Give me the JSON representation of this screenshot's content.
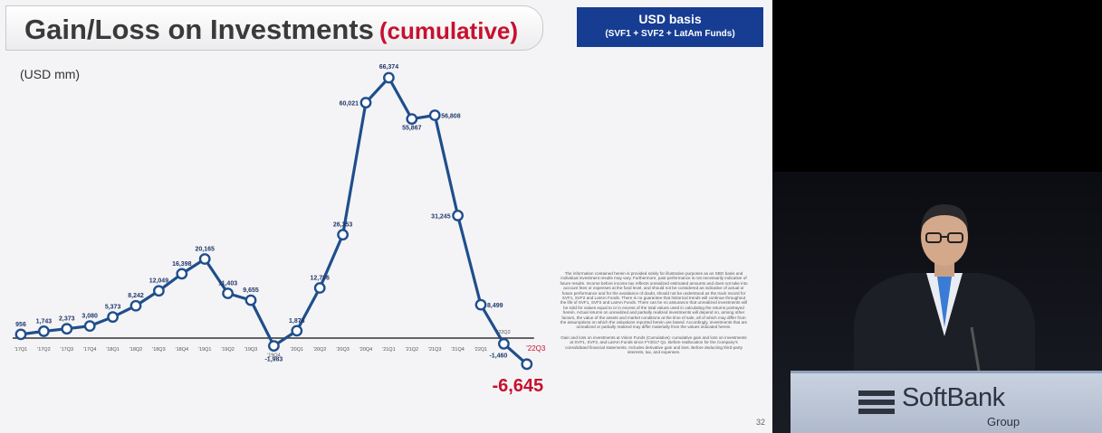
{
  "slide": {
    "title": "Gain/Loss on Investments",
    "title_highlight": "(cumulative)",
    "basis_title": "USD basis",
    "basis_detail": "(SVF1 + SVF2 + LatAm Funds)",
    "unit": "(USD mm)",
    "page_number": "32",
    "disclaimer": "The information contained herein is provided solely for illustrative purposes as an SBG basis and individual investment results may vary. Furthermore, past performance is not necessarily indicative of future results. Income before income tax reflects unrealized estimated amounts and does not take into account fees or expenses at the fund level, and should not be considered as indicative of actual or future performance and for the avoidance of doubt, should not be understood as the track record for SVF1, SVF2 and LatAm Funds. There is no guarantee that historical trends will continue throughout the life of SVF1, SVF2 and LatAm Funds. There can be no assurance that unrealized investments will be sold for values equal to or in excess of the total values used in calculating the returns portrayed herein. Actual returns on unrealized and partially realized investments will depend on, among other factors, the value of the assets and market conditions at the time of sale, all of which may differ from the assumptions on which the valuations reported herein are based. Accordingly, investments that are unrealized or partially realized may differ materially from the values indicated herein.",
    "disclaimer_note": "Gain and loss on investments at Vision Funds (Cumulative): cumulative gain and loss on investments at SVF1, SVF2, and LatAm Funds since FY2017 Q1. Before reallocation for the Company's consolidated financial statements. Includes derivative gain and loss. Before deducting third-party interests, tax, and expenses."
  },
  "colors": {
    "line": "#1f4e8c",
    "marker_fill": "#ffffff",
    "highlight": "#c8102e",
    "basis_bg": "#173d93"
  },
  "chart_data": {
    "type": "line",
    "title": "Gain/Loss on Investments (cumulative)",
    "ylabel": "(USD mm)",
    "ylim": [
      -9000,
      70000
    ],
    "grid": false,
    "x": [
      "'17Q1",
      "'17Q2",
      "'17Q3",
      "'17Q4",
      "'18Q1",
      "'18Q2",
      "'18Q3",
      "'18Q4",
      "'19Q1",
      "'19Q2",
      "'19Q3",
      "'19Q4",
      "'20Q1",
      "'20Q2",
      "'20Q3",
      "'20Q4",
      "'21Q1",
      "'21Q2",
      "'21Q3",
      "'21Q4",
      "'22Q1",
      "'22Q2",
      "'22Q3"
    ],
    "y": [
      956,
      1743,
      2373,
      3080,
      5373,
      8242,
      12049,
      16398,
      20165,
      11403,
      9655,
      -1983,
      1876,
      12786,
      26353,
      60021,
      66374,
      55867,
      56808,
      31245,
      8499,
      -1460,
      -6645
    ],
    "labels": [
      "956",
      "1,743",
      "2,373",
      "3,080",
      "5,373",
      "8,242",
      "12,049",
      "16,398",
      "20,165",
      "11,403",
      "9,655",
      "-1,983",
      "1,876",
      "12,786",
      "26,353",
      "60,021",
      "66,374",
      "55,867",
      "56,808",
      "31,245",
      "8,499",
      "-1,460",
      "-6,645"
    ],
    "tick_labels": [
      "'17Q1",
      "'17Q2",
      "'17Q3",
      "'17Q4",
      "'18Q1",
      "'18Q2",
      "'18Q3",
      "'18Q4",
      "'19Q1",
      "'19Q2",
      "'19Q3",
      "'19Q4",
      "'20Q1",
      "'20Q2",
      "'20Q3",
      "'20Q4",
      "'21Q1",
      "'21Q2",
      "'21Q3",
      "'21Q4",
      "'22Q1",
      "'22Q2",
      "'22Q3"
    ]
  },
  "video": {
    "logo_name": "SoftBank",
    "logo_group": "Group"
  }
}
